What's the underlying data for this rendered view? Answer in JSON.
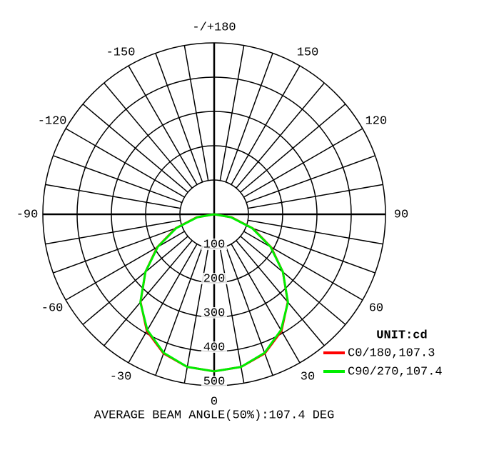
{
  "chart_data": {
    "type": "polar",
    "title": "AVERAGE BEAM ANGLE(50%):107.4 DEG",
    "unit": "UNIT:cd",
    "x": [
      -90,
      -80,
      -70,
      -60,
      -50,
      -40,
      -30,
      -20,
      -10,
      0,
      10,
      20,
      30,
      40,
      50,
      60,
      70,
      80,
      90
    ],
    "series": [
      {
        "name": "C0/180,107.3",
        "color": "#ff0000",
        "values": [
          0,
          52,
          120,
          192,
          262,
          334,
          393,
          432,
          452,
          458,
          452,
          432,
          393,
          334,
          262,
          192,
          120,
          52,
          0
        ]
      },
      {
        "name": "C90/270,107.4",
        "color": "#00ee00",
        "values": [
          0,
          50,
          118,
          190,
          262,
          335,
          390,
          430,
          452,
          458,
          452,
          430,
          390,
          335,
          262,
          190,
          118,
          50,
          0
        ]
      }
    ],
    "rlim": [
      0,
      500
    ],
    "rticks": [
      100,
      200,
      300,
      400,
      500
    ],
    "angle_ticks": [
      -150,
      -120,
      -90,
      -60,
      -30,
      0,
      30,
      60,
      90,
      120,
      150,
      {
        "value": 180,
        "label": "-/+180"
      }
    ]
  }
}
